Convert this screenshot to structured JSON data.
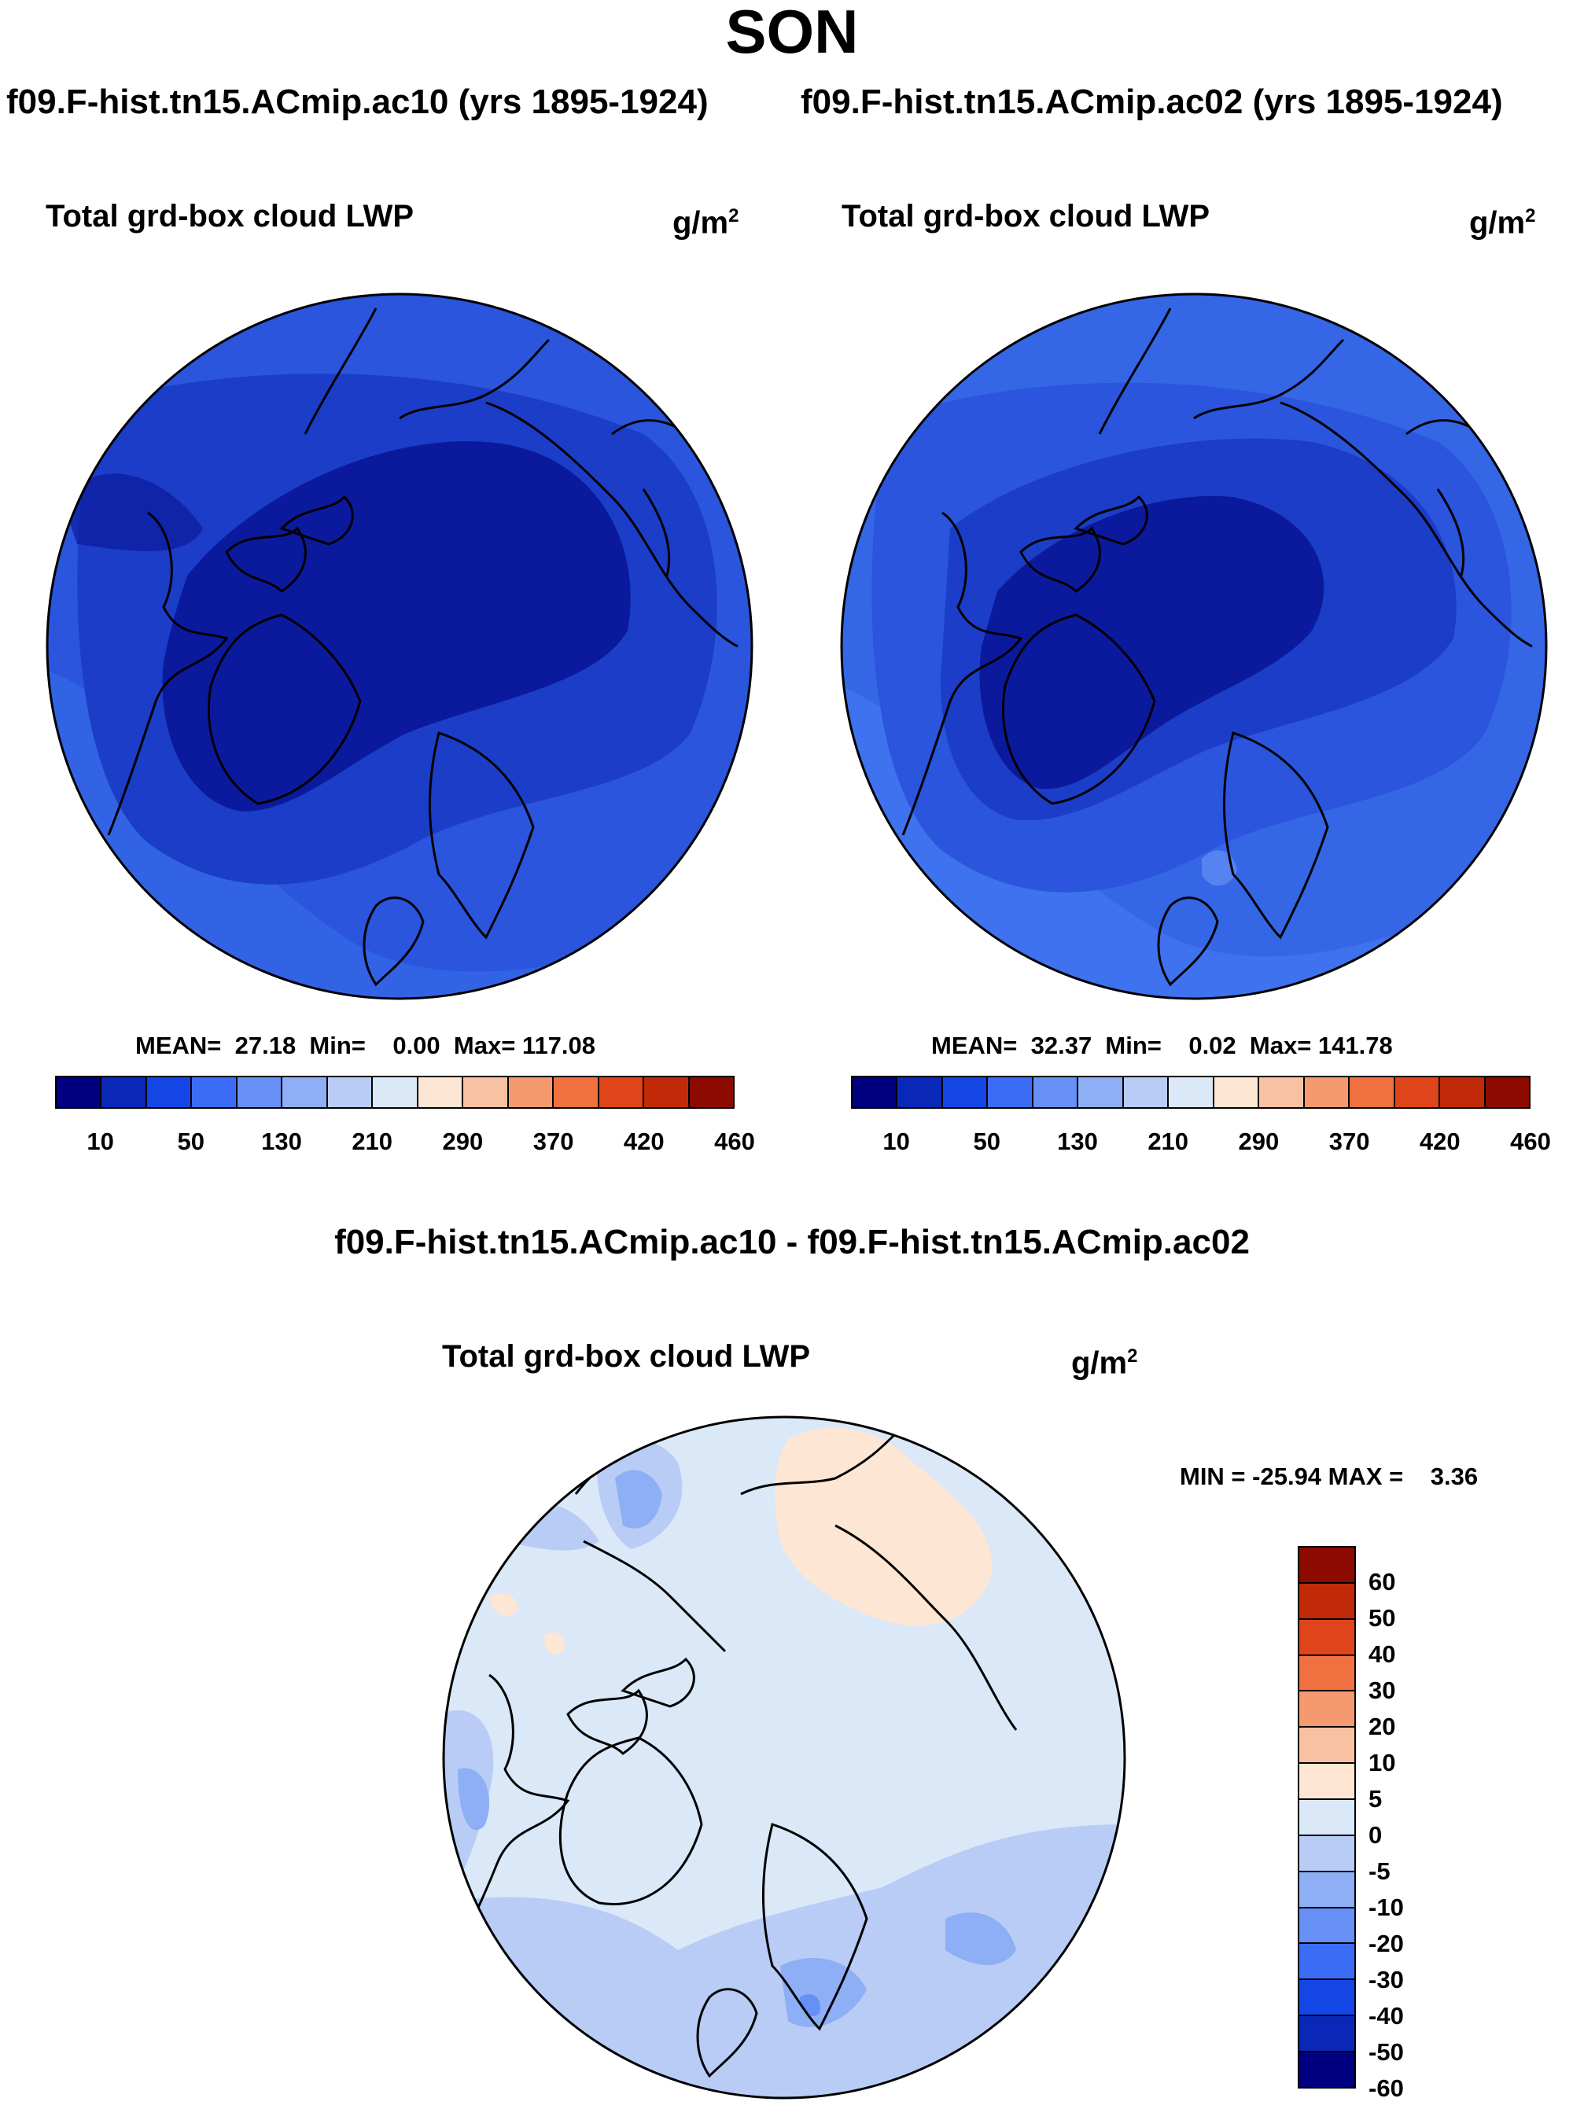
{
  "figure": {
    "title": "SON",
    "left_run_label": "f09.F-hist.tn15.ACmip.ac10 (yrs 1895-1924)",
    "right_run_label": "f09.F-hist.tn15.ACmip.ac02 (yrs 1895-1924)",
    "diff_label": "f09.F-hist.tn15.ACmip.ac10 - f09.F-hist.tn15.ACmip.ac02"
  },
  "panels": {
    "left": {
      "variable": "Total grd-box cloud LWP",
      "units": "g/m",
      "units_exp": "2",
      "stats": "MEAN=  27.18  Min=    0.00  Max= 117.08",
      "mean": 27.18,
      "min": 0.0,
      "max": 117.08
    },
    "right": {
      "variable": "Total grd-box cloud LWP",
      "units": "g/m",
      "units_exp": "2",
      "stats": "MEAN=  32.37  Min=    0.02  Max= 141.78",
      "mean": 32.37,
      "min": 0.02,
      "max": 141.78
    },
    "diff": {
      "variable": "Total grd-box cloud LWP",
      "units": "g/m",
      "units_exp": "2",
      "stats": "MIN = -25.94 MAX =    3.36",
      "min": -25.94,
      "max": 3.36
    }
  },
  "field_colorbar": {
    "colors": [
      "#000080",
      "#0a28b8",
      "#1446e6",
      "#3a6cf5",
      "#6690f5",
      "#8eaef5",
      "#b8ccf5",
      "#dbe8f8",
      "#fde6d3",
      "#f8c2a2",
      "#f59a6e",
      "#f0713f",
      "#e0441a",
      "#c02a08",
      "#8c0a00"
    ],
    "tick_labels": [
      "10",
      "50",
      "130",
      "210",
      "290",
      "370",
      "420",
      "460"
    ]
  },
  "diff_colorbar": {
    "colors_top_to_bottom": [
      "#8c0a00",
      "#c02a08",
      "#e0441a",
      "#f0713f",
      "#f59a6e",
      "#f8c2a2",
      "#fde6d3",
      "#dbe8f8",
      "#b8ccf5",
      "#8eaef5",
      "#6690f5",
      "#3a6cf5",
      "#1446e6",
      "#0a28b8",
      "#000080"
    ],
    "tick_labels_top_to_bottom": [
      "60",
      "50",
      "40",
      "30",
      "20",
      "10",
      "5",
      "0",
      "-5",
      "-10",
      "-20",
      "-30",
      "-40",
      "-50",
      "-60"
    ]
  },
  "map_colors": {
    "field_dark": "#0b1a9c",
    "field_mid": "#1c3dc8",
    "field_base": "#2a55dc",
    "field_light": "#3566e6",
    "diff_base": "#dbe8f8",
    "diff_neg10": "#b8ccf5",
    "diff_neg20": "#8eaef5",
    "diff_pos": "#fde6d3"
  }
}
